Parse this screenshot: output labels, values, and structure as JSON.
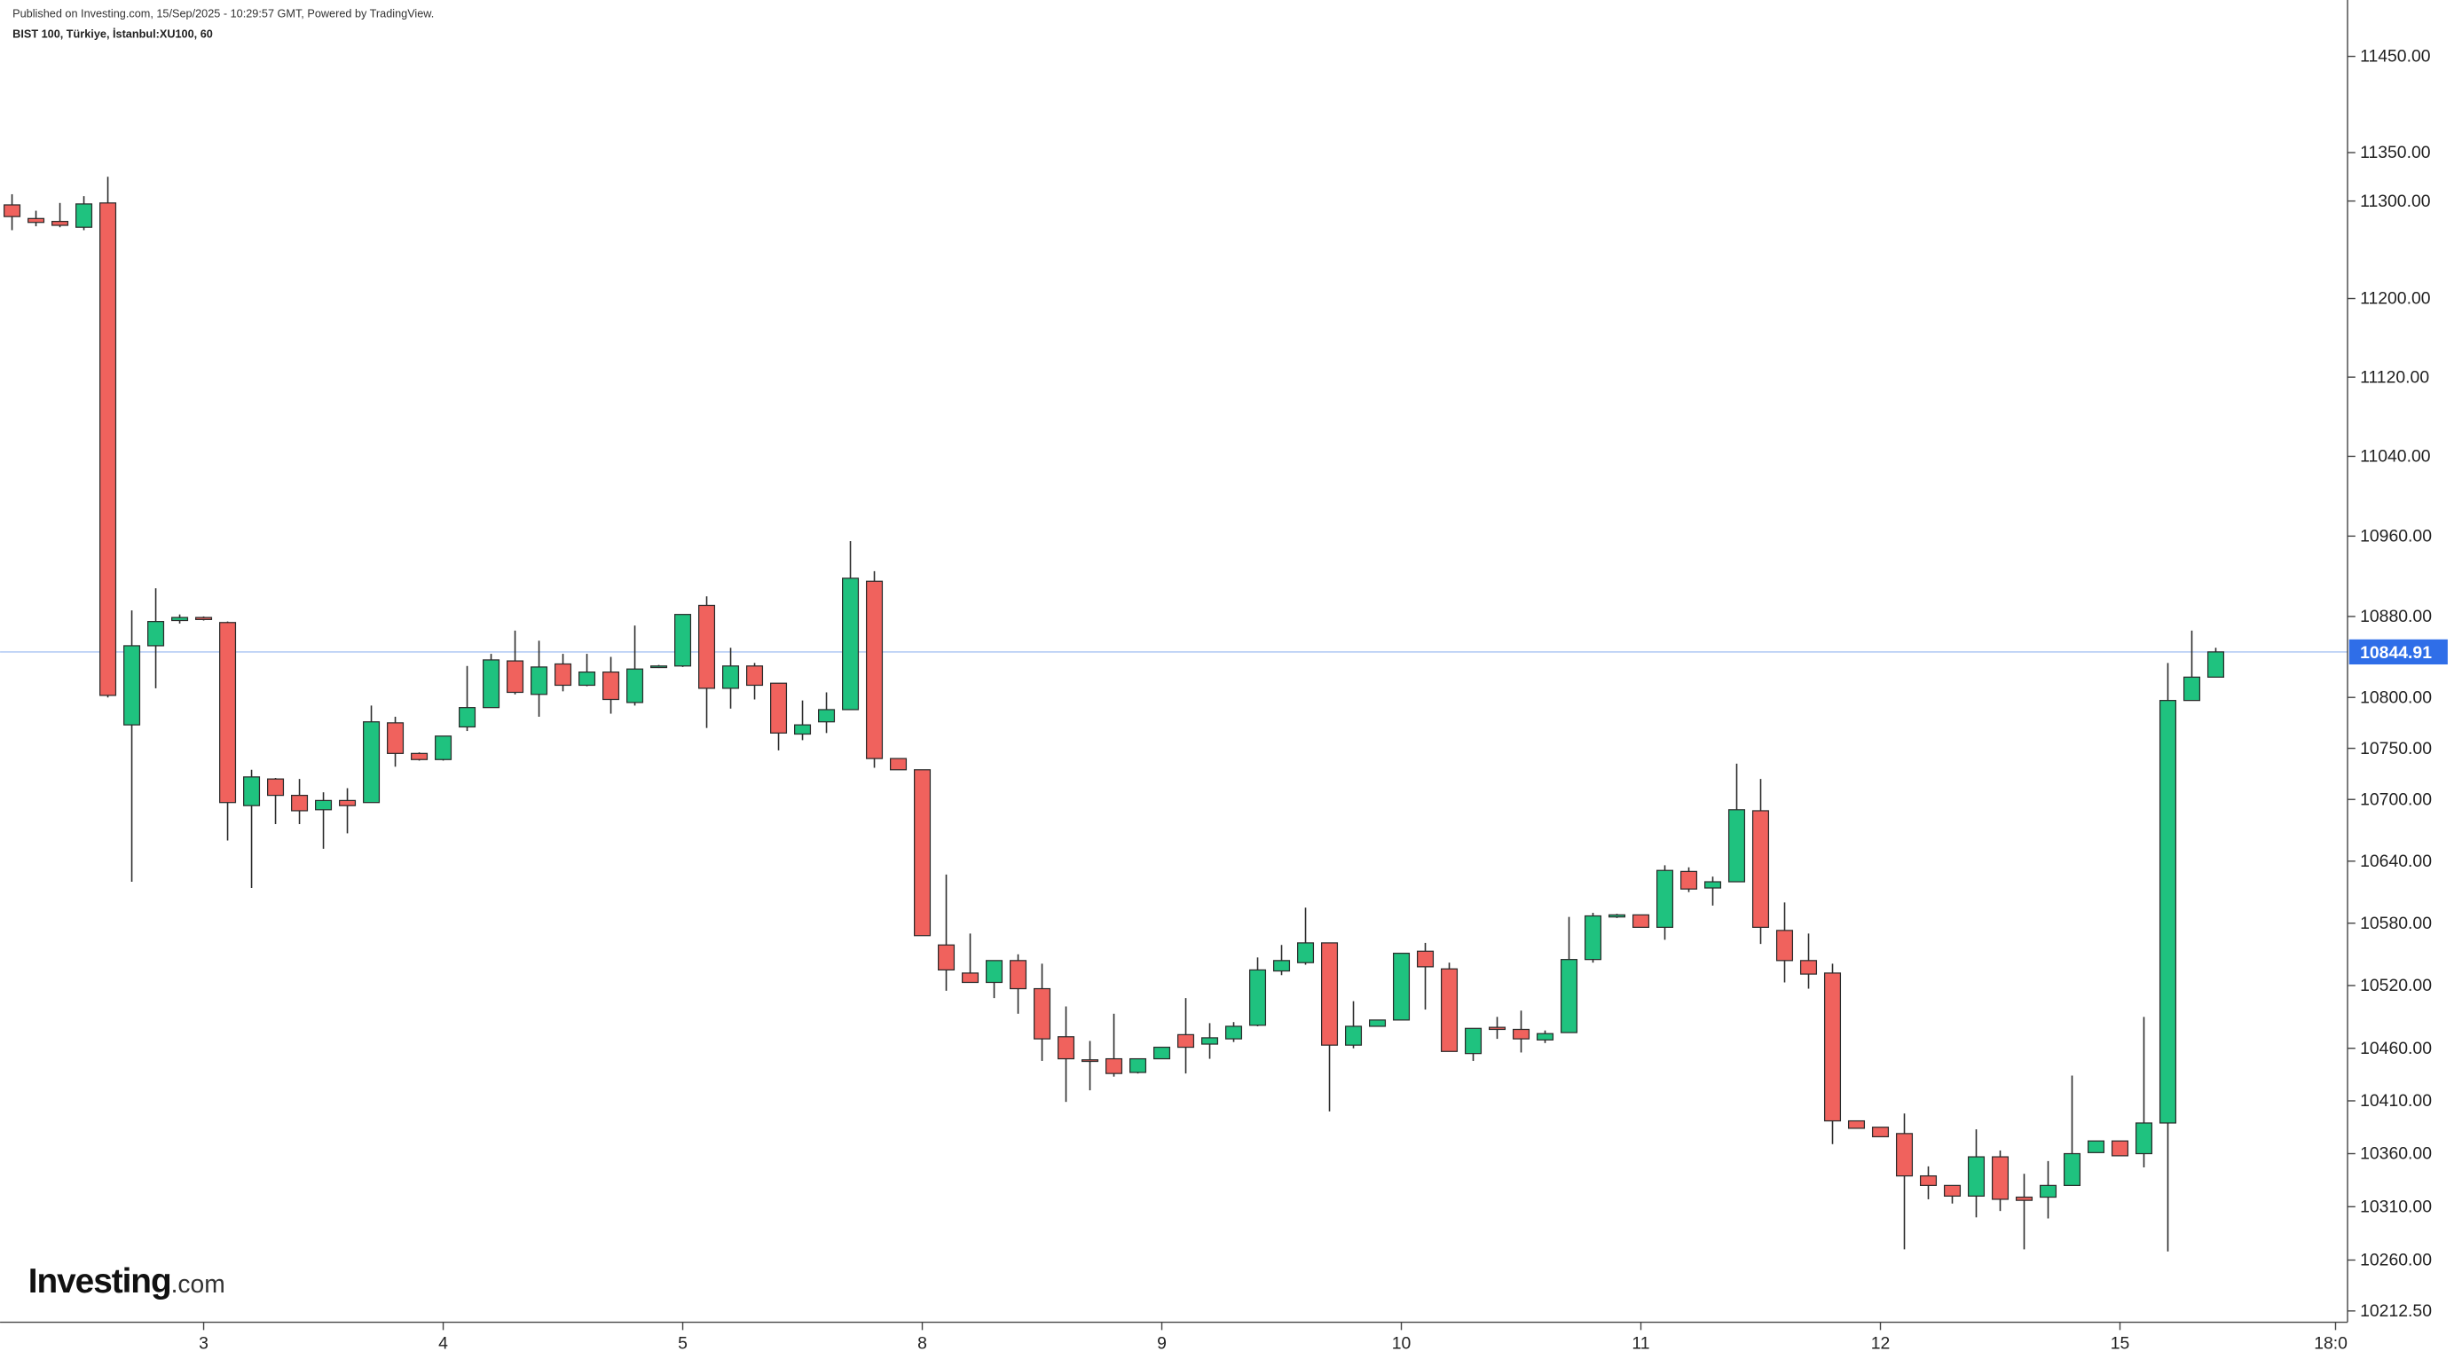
{
  "chart_data": {
    "type": "candlestick",
    "title": "Published on Investing.com, 15/Sep/2025 - 10:29:57 GMT, Powered by TradingView.",
    "subtitle": "BIST 100, Türkiye, İstanbul:XU100, 60",
    "logo": {
      "name": "Investing",
      "suffix": ".com"
    },
    "up_color": "#1fc27f",
    "down_color": "#f0625d",
    "wick_color": "#2b2b2b",
    "log_scale": true,
    "xlim": [
      -0.5,
      97.5
    ],
    "xticks": [
      {
        "value": 8,
        "label": "3"
      },
      {
        "value": 18,
        "label": "4"
      },
      {
        "value": 28,
        "label": "5"
      },
      {
        "value": 38,
        "label": "8"
      },
      {
        "value": 48,
        "label": "9"
      },
      {
        "value": 58,
        "label": "10"
      },
      {
        "value": 68,
        "label": "11"
      },
      {
        "value": 78,
        "label": "12"
      },
      {
        "value": 88,
        "label": "15"
      },
      {
        "value": 97,
        "label": "18:00"
      }
    ],
    "ylim": [
      10202,
      11509
    ],
    "yticks": [
      {
        "value": 11450,
        "label": "11450.00"
      },
      {
        "value": 11350,
        "label": "11350.00"
      },
      {
        "value": 11300,
        "label": "11300.00"
      },
      {
        "value": 11200,
        "label": "11200.00"
      },
      {
        "value": 11120,
        "label": "11120.00"
      },
      {
        "value": 11040,
        "label": "11040.00"
      },
      {
        "value": 10960,
        "label": "10960.00"
      },
      {
        "value": 10880,
        "label": "10880.00"
      },
      {
        "value": 10800,
        "label": "10800.00"
      },
      {
        "value": 10750,
        "label": "10750.00"
      },
      {
        "value": 10700,
        "label": "10700.00"
      },
      {
        "value": 10640,
        "label": "10640.00"
      },
      {
        "value": 10580,
        "label": "10580.00"
      },
      {
        "value": 10520,
        "label": "10520.00"
      },
      {
        "value": 10460,
        "label": "10460.00"
      },
      {
        "value": 10410,
        "label": "10410.00"
      },
      {
        "value": 10360,
        "label": "10360.00"
      },
      {
        "value": 10310,
        "label": "10310.00"
      },
      {
        "value": 10260,
        "label": "10260.00"
      },
      {
        "value": 10212.5,
        "label": "10212.50"
      }
    ],
    "last_price": 10844.91,
    "last_price_color": "#2f6ee8",
    "open": [
      11296,
      11282,
      11279,
      11273,
      11298,
      10773,
      10851,
      10876,
      10879,
      10874,
      10694,
      10720,
      10704,
      10690,
      10699,
      10697,
      10775,
      10745,
      10739,
      10771,
      10790,
      10836,
      10803,
      10833,
      10812,
      10825,
      10795,
      10830,
      10831,
      10891,
      10809,
      10831,
      10814,
      10764,
      10776,
      10788,
      10915,
      10740,
      10729,
      10559,
      10532,
      10523,
      10544,
      10517,
      10471,
      10449,
      10450,
      10437,
      10450,
      10473,
      10464,
      10469,
      10482,
      10534,
      10542,
      10561,
      10463,
      10481,
      10487,
      10553,
      10536,
      10455,
      10480,
      10478,
      10468,
      10475,
      10545,
      10586,
      10588,
      10576,
      10630,
      10614,
      10620,
      10689,
      10573,
      10544,
      10532,
      10391,
      10385,
      10379,
      10339,
      10330,
      10320,
      10357,
      10319,
      10319,
      10330,
      10361,
      10372,
      10360,
      10389,
      10797,
      10820
    ],
    "high": [
      11307,
      11290,
      11298,
      11305,
      11325,
      10886,
      10908,
      10882,
      10880,
      10875,
      10729,
      10721,
      10720,
      10707,
      10711,
      10792,
      10781,
      10746,
      10762,
      10831,
      10843,
      10866,
      10856,
      10843,
      10843,
      10840,
      10871,
      10832,
      10882,
      10900,
      10849,
      10834,
      10814,
      10797,
      10805,
      10955,
      10925,
      10740,
      10729,
      10627,
      10570,
      10544,
      10550,
      10541,
      10500,
      10467,
      10493,
      10450,
      10461,
      10508,
      10484,
      10485,
      10547,
      10559,
      10595,
      10561,
      10505,
      10487,
      10551,
      10561,
      10542,
      10479,
      10490,
      10496,
      10477,
      10586,
      10590,
      10589,
      10588,
      10636,
      10634,
      10625,
      10735,
      10720,
      10600,
      10570,
      10541,
      10391,
      10385,
      10398,
      10348,
      10330,
      10383,
      10363,
      10341,
      10353,
      10434,
      10372,
      10372,
      10490,
      10834,
      10866,
      10849
    ],
    "low": [
      11270,
      11274,
      11273,
      11270,
      10800,
      10620,
      10809,
      10873,
      10876,
      10660,
      10614,
      10676,
      10676,
      10652,
      10667,
      10697,
      10732,
      10738,
      10738,
      10767,
      10790,
      10803,
      10781,
      10806,
      10811,
      10784,
      10792,
      10829,
      10830,
      10770,
      10789,
      10798,
      10748,
      10758,
      10765,
      10788,
      10731,
      10729,
      10568,
      10515,
      10523,
      10508,
      10493,
      10448,
      10409,
      10420,
      10433,
      10436,
      10450,
      10436,
      10450,
      10466,
      10481,
      10530,
      10540,
      10400,
      10460,
      10481,
      10487,
      10497,
      10457,
      10448,
      10469,
      10456,
      10465,
      10475,
      10542,
      10585,
      10576,
      10564,
      10610,
      10597,
      10620,
      10560,
      10523,
      10517,
      10369,
      10384,
      10376,
      10270,
      10317,
      10313,
      10300,
      10306,
      10270,
      10299,
      10330,
      10361,
      10358,
      10347,
      10268,
      10797,
      10820
    ],
    "close": [
      11284,
      11278,
      11275,
      11297,
      10802,
      10851,
      10875,
      10879,
      10877,
      10697,
      10722,
      10704,
      10689,
      10699,
      10694,
      10776,
      10745,
      10739,
      10762,
      10790,
      10837,
      10805,
      10830,
      10812,
      10825,
      10798,
      10828,
      10831,
      10882,
      10809,
      10831,
      10812,
      10765,
      10773,
      10788,
      10918,
      10740,
      10729,
      10568,
      10535,
      10523,
      10544,
      10517,
      10469,
      10450,
      10448,
      10436,
      10450,
      10461,
      10461,
      10470,
      10481,
      10535,
      10544,
      10561,
      10463,
      10481,
      10487,
      10551,
      10538,
      10457,
      10479,
      10478,
      10469,
      10474,
      10545,
      10587,
      10588,
      10576,
      10631,
      10613,
      10620,
      10690,
      10576,
      10544,
      10531,
      10391,
      10384,
      10376,
      10339,
      10330,
      10320,
      10357,
      10317,
      10316,
      10330,
      10360,
      10372,
      10358,
      10389,
      10797,
      10820,
      10844.91
    ]
  }
}
